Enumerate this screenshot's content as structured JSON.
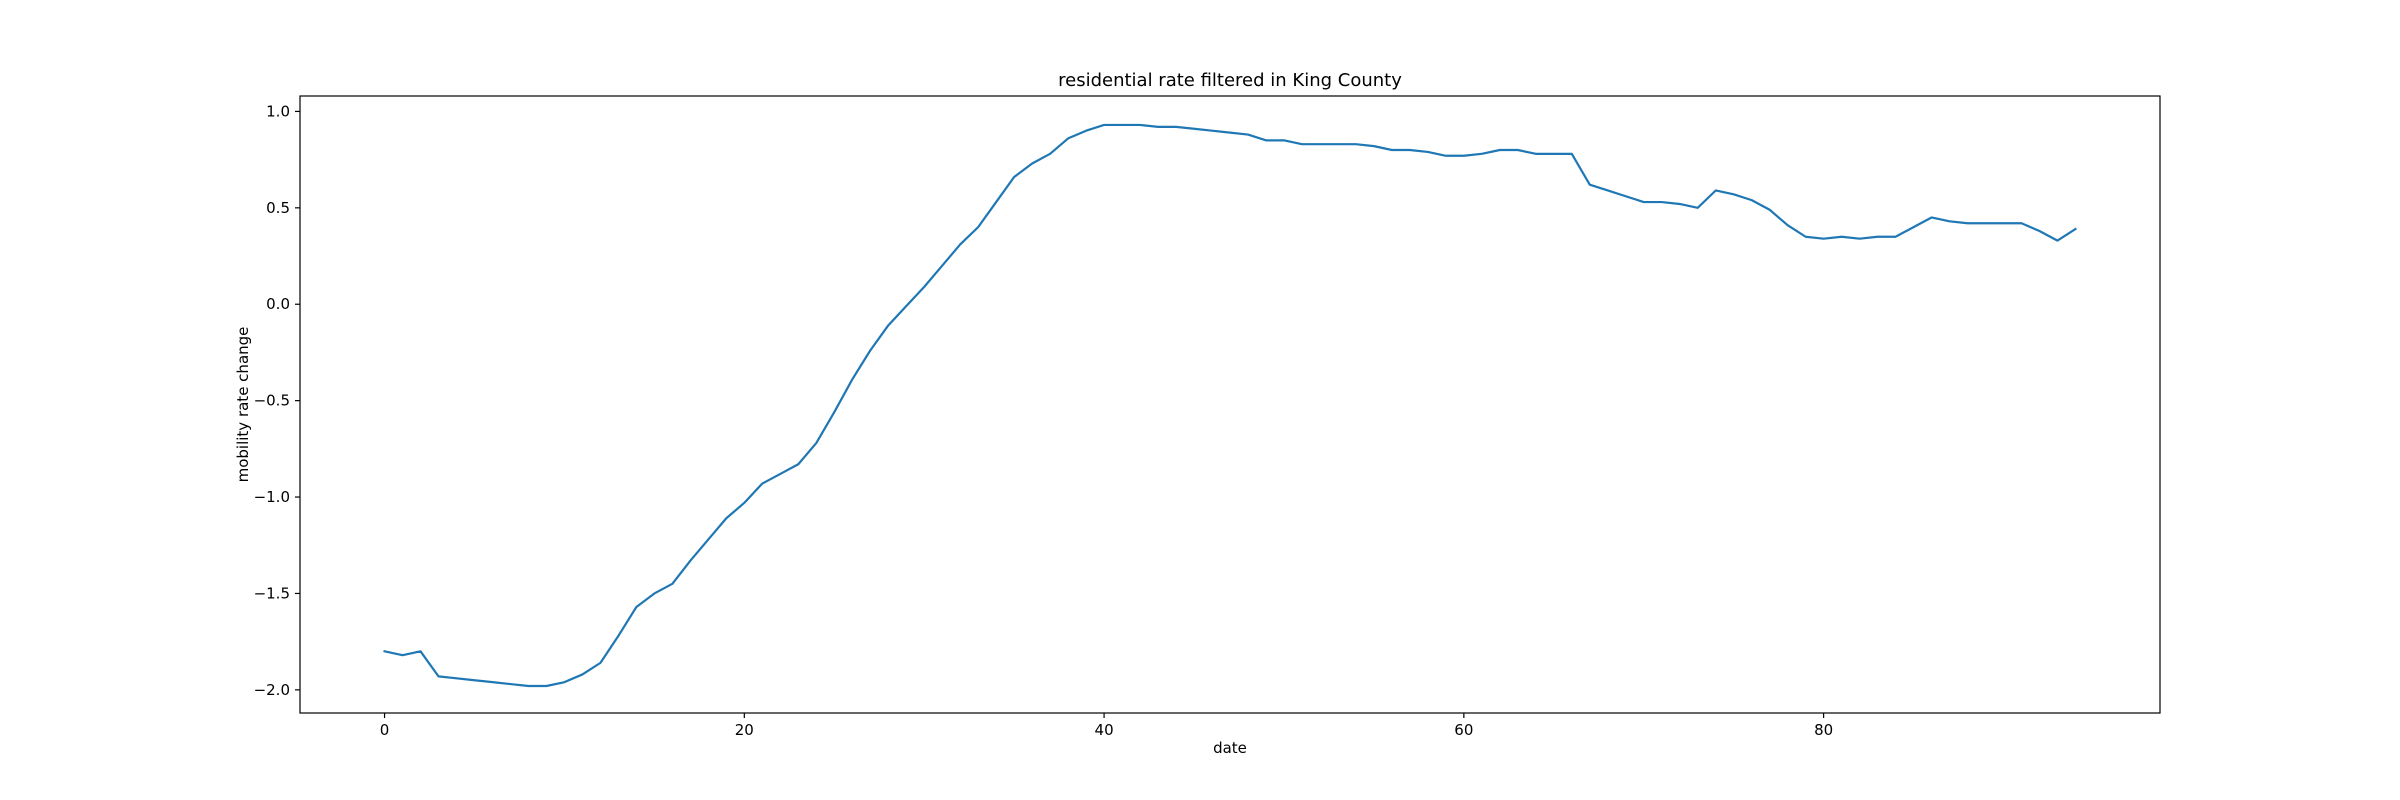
{
  "chart_data": {
    "type": "line",
    "title": "residential rate filtered in King County",
    "xlabel": "date",
    "ylabel": "mobility rate change",
    "xlim": [
      -4.7,
      98.7
    ],
    "ylim": [
      -2.12,
      1.08
    ],
    "xticks": [
      0,
      20,
      40,
      60,
      80
    ],
    "yticks": [
      1.0,
      0.5,
      0.0,
      -0.5,
      -1.0,
      -1.5,
      -2.0
    ],
    "xtick_labels": [
      "0",
      "20",
      "40",
      "60",
      "80"
    ],
    "ytick_labels": [
      "1.0",
      "0.5",
      "0.0",
      "−0.5",
      "−1.0",
      "−1.5",
      "−2.0"
    ],
    "grid": false,
    "line_color": "#1f77b4",
    "series": [
      {
        "x": [
          0,
          1,
          2,
          3,
          4,
          5,
          6,
          7,
          8,
          9,
          10,
          11,
          12,
          13,
          14,
          15,
          16,
          17,
          18,
          19,
          20,
          21,
          22,
          23,
          24,
          25,
          26,
          27,
          28,
          29,
          30,
          31,
          32,
          33,
          34,
          35,
          36,
          37,
          38,
          39,
          40,
          41,
          42,
          43,
          44,
          45,
          46,
          47,
          48,
          49,
          50,
          51,
          52,
          53,
          54,
          55,
          56,
          57,
          58,
          59,
          60,
          61,
          62,
          63,
          64,
          65,
          66,
          67,
          68,
          69,
          70,
          71,
          72,
          73,
          74,
          75,
          76,
          77,
          78,
          79,
          80,
          81,
          82,
          83,
          84,
          85,
          86,
          87,
          88,
          89,
          90,
          91,
          92,
          93,
          94
        ],
        "y": [
          -1.8,
          -1.82,
          -1.8,
          -1.93,
          -1.94,
          -1.95,
          -1.96,
          -1.97,
          -1.98,
          -1.98,
          -1.96,
          -1.92,
          -1.86,
          -1.72,
          -1.57,
          -1.5,
          -1.45,
          -1.33,
          -1.22,
          -1.11,
          -1.03,
          -0.93,
          -0.88,
          -0.83,
          -0.72,
          -0.56,
          -0.39,
          -0.24,
          -0.11,
          -0.01,
          0.09,
          0.2,
          0.31,
          0.4,
          0.53,
          0.66,
          0.73,
          0.78,
          0.86,
          0.9,
          0.93,
          0.93,
          0.93,
          0.92,
          0.92,
          0.91,
          0.9,
          0.89,
          0.88,
          0.85,
          0.85,
          0.83,
          0.83,
          0.83,
          0.83,
          0.82,
          0.8,
          0.8,
          0.79,
          0.77,
          0.77,
          0.78,
          0.8,
          0.8,
          0.78,
          0.78,
          0.78,
          0.62,
          0.59,
          0.56,
          0.53,
          0.53,
          0.52,
          0.5,
          0.59,
          0.57,
          0.54,
          0.49,
          0.41,
          0.35,
          0.34,
          0.35,
          0.34,
          0.35,
          0.35,
          0.4,
          0.45,
          0.43,
          0.42,
          0.42,
          0.42,
          0.42,
          0.38,
          0.33,
          0.39
        ]
      }
    ]
  }
}
